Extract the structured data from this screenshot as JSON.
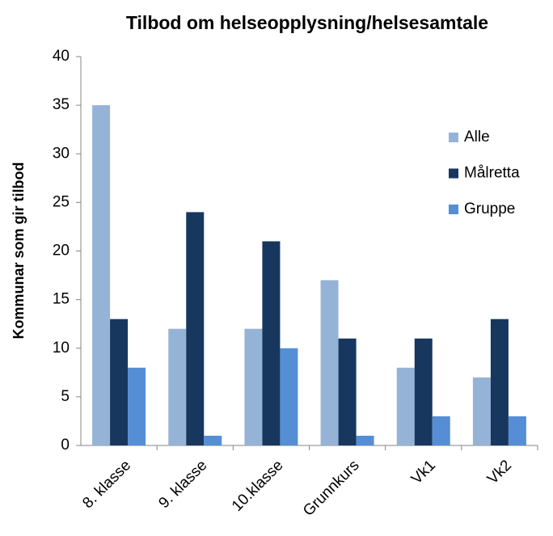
{
  "chart_data": {
    "type": "bar",
    "title": "Tilbod om helseopplysning/helsesamtale",
    "y_label": "Kommunar som gir tilbod",
    "categories": [
      "8. klasse",
      "9. klasse",
      "10.klasse",
      "Grunnkurs",
      "Vk1",
      "Vk2"
    ],
    "series": [
      {
        "name": "Alle",
        "color": "#95b3d7",
        "values": [
          35,
          12,
          12,
          17,
          8,
          7
        ]
      },
      {
        "name": "Målretta",
        "color": "#17375e",
        "values": [
          13,
          24,
          21,
          11,
          11,
          13
        ]
      },
      {
        "name": "Gruppe",
        "color": "#558ed5",
        "values": [
          8,
          1,
          10,
          1,
          3,
          3
        ]
      }
    ],
    "ylim": [
      0,
      40
    ],
    "yticks": [
      0,
      5,
      10,
      15,
      20,
      25,
      30,
      35,
      40
    ],
    "grid": false,
    "legend": "right"
  }
}
